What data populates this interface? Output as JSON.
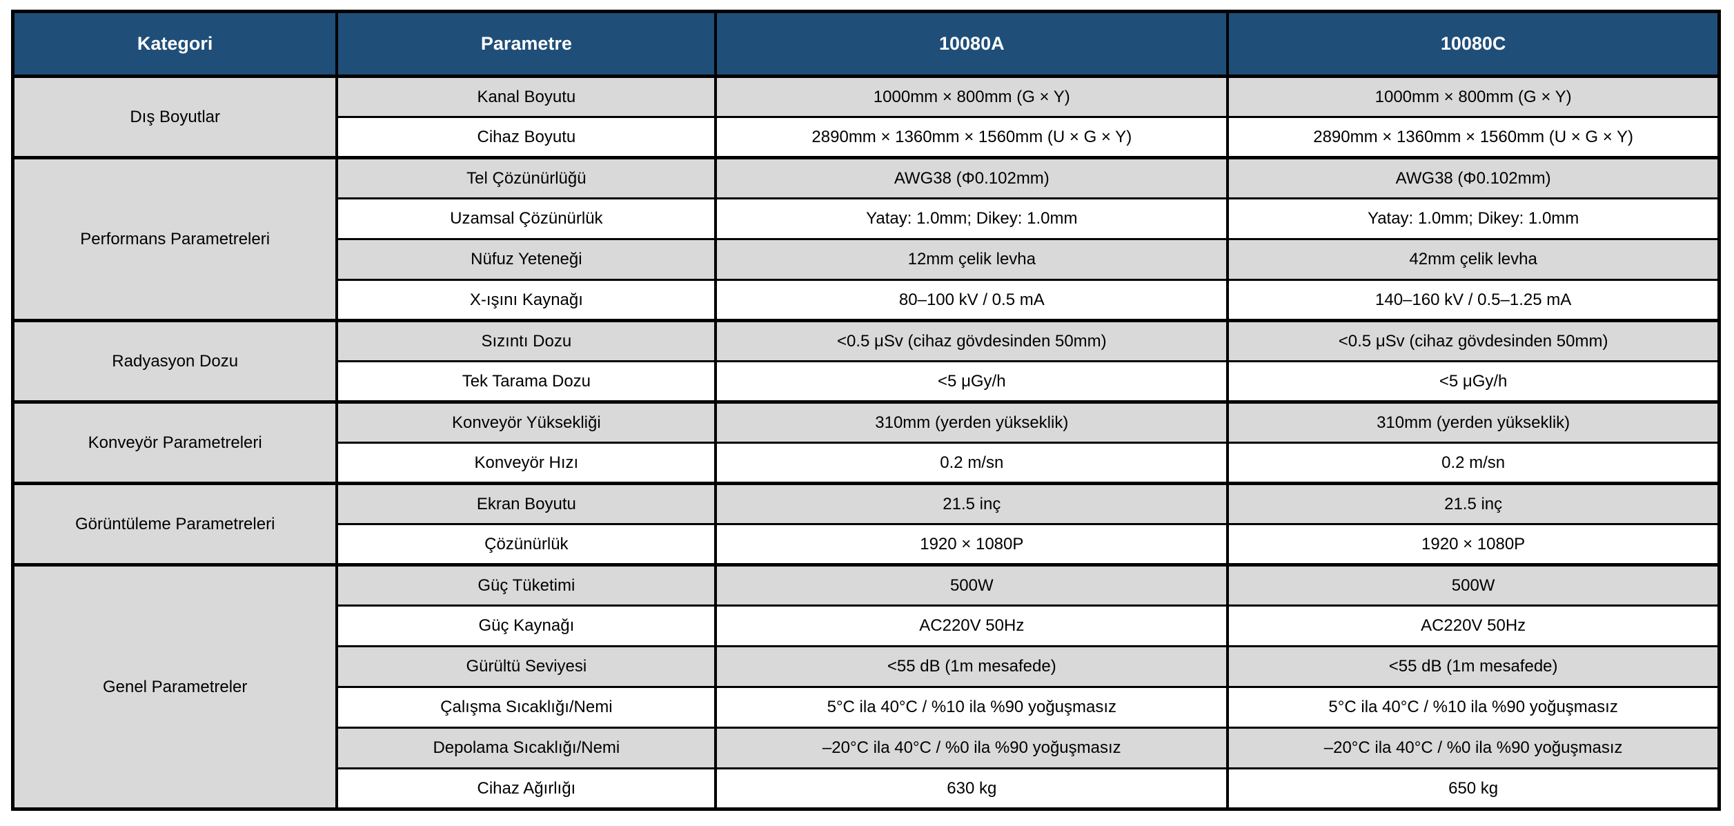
{
  "colors": {
    "header_bg": "#1F4E79",
    "row_alt_bg": "#D9D9D9",
    "border": "#000000"
  },
  "table": {
    "columns": [
      "Kategori",
      "Parametre",
      "10080A",
      "10080C"
    ],
    "groups": [
      {
        "category": "Dış Boyutlar",
        "rows": [
          {
            "parameter": "Kanal Boyutu",
            "a": "1000mm × 800mm (G × Y)",
            "c": "1000mm × 800mm (G × Y)"
          },
          {
            "parameter": "Cihaz Boyutu",
            "a": "2890mm × 1360mm × 1560mm (U × G × Y)",
            "c": "2890mm × 1360mm × 1560mm (U × G × Y)"
          }
        ]
      },
      {
        "category": "Performans Parametreleri",
        "rows": [
          {
            "parameter": "Tel Çözünürlüğü",
            "a": "AWG38 (Φ0.102mm)",
            "c": "AWG38 (Φ0.102mm)"
          },
          {
            "parameter": "Uzamsal Çözünürlük",
            "a": "Yatay: 1.0mm; Dikey: 1.0mm",
            "c": "Yatay: 1.0mm; Dikey: 1.0mm"
          },
          {
            "parameter": "Nüfuz Yeteneği",
            "a": "12mm çelik levha",
            "c": "42mm çelik levha"
          },
          {
            "parameter": "X-ışını Kaynağı",
            "a": "80–100 kV / 0.5 mA",
            "c": "140–160 kV / 0.5–1.25 mA"
          }
        ]
      },
      {
        "category": "Radyasyon Dozu",
        "rows": [
          {
            "parameter": "Sızıntı Dozu",
            "a": "<0.5 μSv (cihaz gövdesinden 50mm)",
            "c": "<0.5 μSv (cihaz gövdesinden 50mm)"
          },
          {
            "parameter": "Tek Tarama Dozu",
            "a": "<5 μGy/h",
            "c": "<5 μGy/h"
          }
        ]
      },
      {
        "category": "Konveyör Parametreleri",
        "rows": [
          {
            "parameter": "Konveyör Yüksekliği",
            "a": "310mm (yerden yükseklik)",
            "c": "310mm (yerden yükseklik)"
          },
          {
            "parameter": "Konveyör Hızı",
            "a": "0.2 m/sn",
            "c": "0.2 m/sn"
          }
        ]
      },
      {
        "category": "Görüntüleme Parametreleri",
        "rows": [
          {
            "parameter": "Ekran Boyutu",
            "a": "21.5 inç",
            "c": "21.5 inç"
          },
          {
            "parameter": "Çözünürlük",
            "a": "1920 × 1080P",
            "c": "1920 × 1080P"
          }
        ]
      },
      {
        "category": "Genel Parametreler",
        "rows": [
          {
            "parameter": "Güç Tüketimi",
            "a": "500W",
            "c": "500W"
          },
          {
            "parameter": "Güç Kaynağı",
            "a": "AC220V 50Hz",
            "c": "AC220V 50Hz"
          },
          {
            "parameter": "Gürültü Seviyesi",
            "a": "<55 dB (1m mesafede)",
            "c": "<55 dB (1m mesafede)"
          },
          {
            "parameter": "Çalışma Sıcaklığı/Nemi",
            "a": "5°C ila 40°C / %10 ila %90 yoğuşmasız",
            "c": "5°C ila 40°C / %10 ila %90 yoğuşmasız"
          },
          {
            "parameter": "Depolama Sıcaklığı/Nemi",
            "a": "–20°C ila 40°C / %0 ila %90 yoğuşmasız",
            "c": "–20°C ila 40°C / %0 ila %90 yoğuşmasız"
          },
          {
            "parameter": "Cihaz Ağırlığı",
            "a": "630 kg",
            "c": "650 kg"
          }
        ]
      }
    ]
  }
}
